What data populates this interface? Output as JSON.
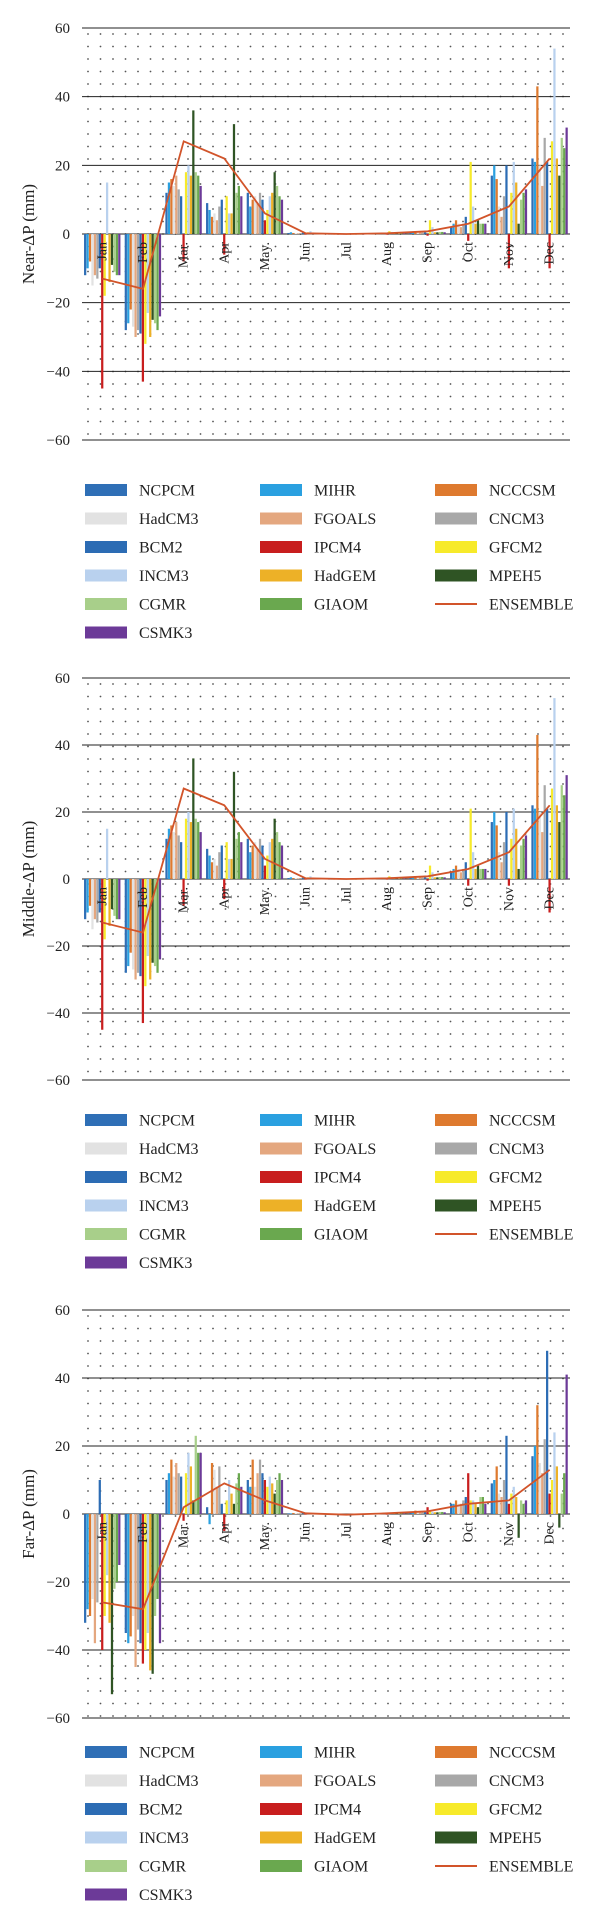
{
  "colors": {
    "NCPCM": "#2f6fb6",
    "MIHR": "#2aa0e0",
    "NCCCSM": "#de7a2f",
    "HadCM3": "#e2e2e2",
    "FGOALS": "#e4a77f",
    "CNCM3": "#a8a8a8",
    "BCM2": "#2c6cb4",
    "IPCM4": "#c81e1e",
    "GFCM2": "#f7ea2a",
    "INCM3": "#b9d1ee",
    "HadGEM": "#edb127",
    "MPEH5": "#2f5424",
    "CGMR": "#a8cf8a",
    "GIAOM": "#6aa84f",
    "ENSEMBLE": "#d2542a",
    "CSMK3": "#6c3a98",
    "grid": "#222222",
    "dots": "#555555"
  },
  "chart_data": [
    {
      "type": "bar",
      "ylabel": "Near-ΔP (mm)",
      "ylim": [
        -60,
        60
      ],
      "yticks": [
        "60",
        "40",
        "20",
        "0",
        "−20",
        "−40",
        "−60"
      ],
      "categories": [
        "Jan",
        "Feb",
        "Mar.",
        "Apr",
        "May.",
        "Jun",
        "Jul",
        "Aug",
        "Sep",
        "Oct",
        "Nov",
        "Dec"
      ],
      "series": [
        {
          "name": "NCPCM",
          "values": [
            -12,
            -28,
            12,
            9,
            12,
            0.3,
            0,
            0.2,
            0.5,
            2,
            17,
            22
          ]
        },
        {
          "name": "MIHR",
          "values": [
            -10,
            -26,
            15,
            7,
            8,
            0.5,
            0,
            0.2,
            0.5,
            3,
            20,
            21
          ]
        },
        {
          "name": "NCCCSM",
          "values": [
            -8,
            -22,
            16,
            5,
            10,
            0.3,
            0,
            0.1,
            0.5,
            4,
            16,
            43
          ]
        },
        {
          "name": "HadCM3",
          "values": [
            -15,
            -27,
            14,
            6,
            11,
            0.2,
            0,
            0.2,
            0.8,
            3,
            8,
            20
          ]
        },
        {
          "name": "FGOALS",
          "values": [
            -12,
            -30,
            17,
            4,
            9,
            0.2,
            0,
            0.2,
            0.6,
            2,
            5,
            14
          ]
        },
        {
          "name": "CNCM3",
          "values": [
            -13,
            -28,
            13,
            8,
            12,
            0.3,
            0,
            0.2,
            0.4,
            3,
            11,
            28
          ]
        },
        {
          "name": "BCM2",
          "values": [
            -10,
            -29,
            11,
            10,
            10,
            0.4,
            0,
            0.2,
            0.5,
            5,
            20,
            21
          ]
        },
        {
          "name": "IPCM4",
          "values": [
            -45,
            -43,
            -8,
            -6,
            4,
            -0.2,
            0,
            -0.2,
            -0.5,
            -2,
            -10,
            -10
          ]
        },
        {
          "name": "GFCM2",
          "values": [
            -18,
            -32,
            18,
            11,
            7,
            0.5,
            0,
            0.8,
            4,
            21,
            12,
            27
          ]
        },
        {
          "name": "INCM3",
          "values": [
            15,
            -23,
            20,
            6,
            11,
            0.8,
            0,
            0.6,
            2,
            8,
            21,
            54
          ]
        },
        {
          "name": "HadGEM",
          "values": [
            -14,
            -30,
            17,
            6,
            12,
            0.2,
            0,
            0.2,
            0.5,
            3,
            15,
            22
          ]
        },
        {
          "name": "MPEH5",
          "values": [
            -9,
            -25,
            36,
            32,
            18,
            0.2,
            0,
            0.2,
            0.5,
            4,
            3,
            17
          ]
        },
        {
          "name": "CGMR",
          "values": [
            -11,
            -26,
            18,
            12,
            14,
            0.3,
            0,
            0.2,
            0.6,
            3,
            10,
            28
          ]
        },
        {
          "name": "GIAOM",
          "values": [
            -12,
            -28,
            17,
            14,
            11,
            0.3,
            0,
            0.2,
            0.6,
            3,
            12,
            25
          ]
        },
        {
          "name": "CSMK3",
          "values": [
            -12,
            -24,
            14,
            11,
            10,
            0.3,
            0,
            0.2,
            0.5,
            3,
            13,
            31
          ]
        }
      ],
      "ensemble": {
        "name": "ENSEMBLE",
        "values": [
          -13,
          -16,
          27,
          22,
          6,
          0.2,
          0,
          0.2,
          0.8,
          3,
          8,
          22
        ]
      }
    },
    {
      "type": "bar",
      "ylabel": "Middle-ΔP (mm)",
      "ylim": [
        -60,
        60
      ],
      "yticks": [
        "60",
        "40",
        "20",
        "0",
        "−20",
        "−40",
        "−60"
      ],
      "categories": [
        "Jan",
        "Feb",
        "Mar.",
        "Apr",
        "May.",
        "Jun",
        "Jul",
        "Aug",
        "Sep",
        "Oct",
        "Nov",
        "Dec"
      ],
      "series": [
        {
          "name": "NCPCM",
          "values": [
            -12,
            -28,
            12,
            9,
            12,
            0.3,
            0,
            0.2,
            0.5,
            2,
            17,
            22
          ]
        },
        {
          "name": "MIHR",
          "values": [
            -10,
            -26,
            15,
            7,
            8,
            0.5,
            0,
            0.2,
            0.5,
            3,
            20,
            21
          ]
        },
        {
          "name": "NCCCSM",
          "values": [
            -8,
            -22,
            16,
            5,
            10,
            0.3,
            0,
            0.1,
            0.5,
            4,
            16,
            43
          ]
        },
        {
          "name": "HadCM3",
          "values": [
            -15,
            -27,
            14,
            6,
            11,
            0.2,
            0,
            0.2,
            0.8,
            3,
            8,
            20
          ]
        },
        {
          "name": "FGOALS",
          "values": [
            -12,
            -30,
            17,
            4,
            9,
            0.2,
            0,
            0.2,
            0.6,
            2,
            5,
            14
          ]
        },
        {
          "name": "CNCM3",
          "values": [
            -13,
            -28,
            13,
            8,
            12,
            0.3,
            0,
            0.2,
            0.4,
            3,
            11,
            28
          ]
        },
        {
          "name": "BCM2",
          "values": [
            -10,
            -29,
            11,
            10,
            10,
            0.4,
            0,
            0.2,
            0.5,
            5,
            20,
            21
          ]
        },
        {
          "name": "IPCM4",
          "values": [
            -45,
            -43,
            -8,
            -6,
            4,
            -0.2,
            0,
            -0.2,
            -0.5,
            -2,
            -2,
            -10
          ]
        },
        {
          "name": "GFCM2",
          "values": [
            -18,
            -32,
            18,
            11,
            7,
            0.5,
            0,
            0.8,
            4,
            21,
            12,
            27
          ]
        },
        {
          "name": "INCM3",
          "values": [
            15,
            -23,
            20,
            6,
            11,
            0.8,
            0,
            0.6,
            2,
            8,
            21,
            54
          ]
        },
        {
          "name": "HadGEM",
          "values": [
            -14,
            -30,
            17,
            6,
            12,
            0.2,
            0,
            0.2,
            0.5,
            3,
            15,
            22
          ]
        },
        {
          "name": "MPEH5",
          "values": [
            -9,
            -25,
            36,
            32,
            18,
            0.2,
            0,
            0.2,
            0.5,
            4,
            3,
            17
          ]
        },
        {
          "name": "CGMR",
          "values": [
            -11,
            -26,
            18,
            12,
            14,
            0.3,
            0,
            0.2,
            0.6,
            3,
            10,
            28
          ]
        },
        {
          "name": "GIAOM",
          "values": [
            -12,
            -28,
            17,
            14,
            11,
            0.3,
            0,
            0.2,
            0.6,
            3,
            12,
            25
          ]
        },
        {
          "name": "CSMK3",
          "values": [
            -12,
            -24,
            14,
            11,
            10,
            0.3,
            0,
            0.2,
            0.5,
            3,
            13,
            31
          ]
        }
      ],
      "ensemble": {
        "name": "ENSEMBLE",
        "values": [
          -13,
          -16,
          27,
          22,
          6,
          0.2,
          0,
          0.2,
          0.8,
          3,
          8,
          22
        ]
      }
    },
    {
      "type": "bar",
      "ylabel": "Far-ΔP (mm)",
      "ylim": [
        -60,
        60
      ],
      "yticks": [
        "60",
        "40",
        "20",
        "0",
        "−20",
        "−40",
        "−60"
      ],
      "categories": [
        "Jan",
        "Feb",
        "Mar.",
        "Apr",
        "May.",
        "Jun",
        "Jul",
        "Aug",
        "Sep",
        "Oct",
        "Nov",
        "Dec"
      ],
      "series": [
        {
          "name": "NCPCM",
          "values": [
            -32,
            -35,
            10,
            2,
            10,
            0.2,
            0,
            0.2,
            0.5,
            3,
            9,
            17
          ]
        },
        {
          "name": "MIHR",
          "values": [
            -28,
            -38,
            12,
            -3,
            8,
            0.2,
            0,
            0.2,
            0.5,
            3,
            10,
            20
          ]
        },
        {
          "name": "NCCCSM",
          "values": [
            -30,
            -36,
            16,
            15,
            16,
            0.3,
            0,
            0.3,
            1,
            4,
            14,
            32
          ]
        },
        {
          "name": "HadCM3",
          "values": [
            -25,
            -30,
            11,
            13,
            8,
            0.2,
            0,
            0.2,
            0.5,
            3,
            6,
            15
          ]
        },
        {
          "name": "FGOALS",
          "values": [
            -38,
            -45,
            15,
            8,
            12,
            0.2,
            0,
            0.2,
            0.6,
            3,
            5,
            12
          ]
        },
        {
          "name": "CNCM3",
          "values": [
            -26,
            -34,
            12,
            14,
            16,
            0.2,
            0,
            0.2,
            0.5,
            4,
            10,
            22
          ]
        },
        {
          "name": "BCM2",
          "values": [
            10,
            -38,
            11,
            3,
            12,
            0.3,
            0,
            0.2,
            0.8,
            5,
            23,
            48
          ]
        },
        {
          "name": "IPCM4",
          "values": [
            -40,
            -44,
            -2,
            -5,
            10,
            -0.2,
            0,
            -0.2,
            2,
            12,
            3,
            6
          ]
        },
        {
          "name": "GFCM2",
          "values": [
            -30,
            -40,
            12,
            4,
            8,
            0.2,
            0,
            0.3,
            0.8,
            4,
            6,
            10
          ]
        },
        {
          "name": "INCM3",
          "values": [
            -18,
            -35,
            18,
            10,
            11,
            0.3,
            0,
            0.2,
            0.6,
            4,
            8,
            24
          ]
        },
        {
          "name": "HadGEM",
          "values": [
            -32,
            -46,
            14,
            6,
            9,
            0.2,
            0,
            0.2,
            0.5,
            3,
            5,
            14
          ]
        },
        {
          "name": "MPEH5",
          "values": [
            -53,
            -47,
            4,
            3,
            6,
            0.2,
            0,
            0.2,
            0.5,
            2,
            -7,
            -4
          ]
        },
        {
          "name": "CGMR",
          "values": [
            -22,
            -30,
            23,
            9,
            10,
            0.2,
            0,
            0.2,
            0.6,
            5,
            4,
            6
          ]
        },
        {
          "name": "GIAOM",
          "values": [
            -20,
            -25,
            18,
            12,
            12,
            0.2,
            0,
            0.2,
            0.6,
            5,
            3,
            12
          ]
        },
        {
          "name": "CSMK3",
          "values": [
            -15,
            -38,
            18,
            8,
            10,
            0.2,
            0,
            0.2,
            0.5,
            3,
            4,
            41
          ]
        }
      ],
      "ensemble": {
        "name": "ENSEMBLE",
        "values": [
          -26,
          -28,
          2,
          9,
          4,
          0.2,
          -0.2,
          0.2,
          0.8,
          3,
          4,
          13
        ]
      }
    }
  ]
}
